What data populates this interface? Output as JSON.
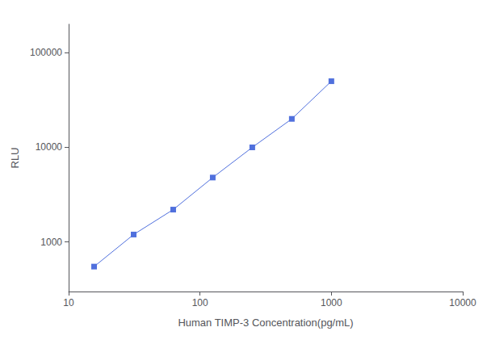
{
  "chart_data": {
    "type": "line",
    "x": [
      15.625,
      31.25,
      62.5,
      125,
      250,
      500,
      1000
    ],
    "values": [
      550,
      1200,
      2200,
      4800,
      10000,
      20000,
      50000
    ],
    "xlabel": "Human TIMP-3 Concentration(pg/mL)",
    "ylabel": "RLU",
    "xlim": [
      10,
      10000
    ],
    "ylim": [
      300,
      200000
    ],
    "xticks": [
      10,
      100,
      1000,
      10000
    ],
    "yticks": [
      1000,
      10000,
      100000
    ],
    "log": true,
    "grid": false,
    "marker": "square"
  }
}
